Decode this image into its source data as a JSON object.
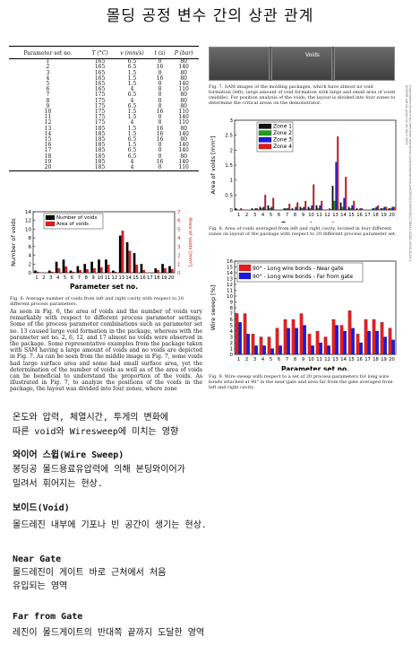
{
  "title": "몰딩 공정 변수 간의 상관 관계",
  "table": {
    "headers": [
      "Parameter set no.",
      "T (°C)",
      "v (mm/s)",
      "t (s)",
      "P (bar)"
    ],
    "rows": [
      [
        "1",
        "165",
        "6.5",
        "0",
        "80"
      ],
      [
        "2",
        "165",
        "6.5",
        "16",
        "140"
      ],
      [
        "3",
        "165",
        "1.5",
        "0",
        "80"
      ],
      [
        "4",
        "165",
        "1.5",
        "16",
        "80"
      ],
      [
        "5",
        "165",
        "1.5",
        "0",
        "140"
      ],
      [
        "6",
        "165",
        "4",
        "8",
        "110"
      ],
      [
        "7",
        "175",
        "6.5",
        "0",
        "80"
      ],
      [
        "8",
        "175",
        "4",
        "0",
        "80"
      ],
      [
        "9",
        "175",
        "6.5",
        "8",
        "80"
      ],
      [
        "10",
        "175",
        "1.5",
        "16",
        "110"
      ],
      [
        "11",
        "175",
        "1.5",
        "0",
        "140"
      ],
      [
        "12",
        "175",
        "4",
        "8",
        "110"
      ],
      [
        "13",
        "185",
        "1.5",
        "16",
        "80"
      ],
      [
        "14",
        "185",
        "1.5",
        "16",
        "140"
      ],
      [
        "15",
        "185",
        "6.5",
        "16",
        "80"
      ],
      [
        "16",
        "185",
        "1.5",
        "0",
        "140"
      ],
      [
        "17",
        "185",
        "6.5",
        "0",
        "140"
      ],
      [
        "18",
        "185",
        "6.5",
        "0",
        "80"
      ],
      [
        "19",
        "185",
        "4",
        "16",
        "140"
      ],
      [
        "20",
        "185",
        "4",
        "0",
        "110"
      ]
    ]
  },
  "fig7": {
    "void_label": "Voids",
    "caption": "Fig. 7.   SAM images of the molding packages, which have almost no void formation (left), large amount of void formation with large and small area of voids (middle). For position analysis of the voids, the layout is divided into four zones to determine the critical areas on the demonstrator."
  },
  "side_text": "Downloaded from http://meridian.allenpress.com/imaps/article-pdf/2020/1/000258/2738451/i2380-4505-2020-1-000258.pdf by guest on 20 April 2025",
  "fig6": {
    "caption": "Fig. 6.   Average number of voids from left and right cavity with respect to 20 different process parameters.",
    "xlabel": "Parameter set no.",
    "ylabel_left": "Number of voids",
    "ylabel_right": "Area of voids [mm²]"
  },
  "fig8": {
    "caption": "Fig. 8.   Area of voids averaged from left and right cavity, located in four different zones on layout of the package with respect to 20 different process parameter set.",
    "xlabel": "Parameter set no.",
    "ylabel": "Area of voids [mm²]"
  },
  "fig9": {
    "caption": "Fig. 9.   Wire sweep with respect to a set of 20 process parameters for long wire bonds attached at 90° in the near-gate and area far from the gate averaged from left and right cavity.",
    "xlabel": "Parameter set no.",
    "ylabel": "Wire sweep [%]"
  },
  "body_text": "As seen in Fig. 6, the area of voids and the number of voids vary remarkably with respect to different process parameter settings. Some of the process parameter combinations such as parameter set no. 13 caused large void formation in the package, whereas with the parameter set no. 2, 6, 12, and 17 almost no voids were observed in the package. Some representative examples from the package taken with SAM having a large amount of voids and no voids are depicted in Fig. 7. As can be seen from the middle image in Fig. 7, some voids had large surface area and some had small surface area, yet the determination of the number of voids as well as of the area of voids can be beneficial to understand the proportion of the voids.",
  "body_text2": "As illustrated in Fig. 7, to analyze the positions of the voids in the package, the layout was divided into four zones, where zone",
  "notes": {
    "line1": "온도와 압력, 체열시간, 투게의 변화에",
    "line2": "따른 void와 Wiresweep에 미치는 영향",
    "ws_title": "와이어 스윕(Wire Sweep)",
    "ws_desc1": "봉딩공 몰드용료유압력에 의해 본딩와이어가",
    "ws_desc2": "밀려서 휘어지는 현상.",
    "void_title": "보이드(Void)",
    "void_desc": "몰드레진 내부에 기포나 빈 공간이 생기는 현상.",
    "near_title": "Near Gate",
    "near_desc1": "몰드레진이 게이트 바로 근처에서 처음",
    "near_desc2": "유입되는 영역",
    "far_title": "Far from Gate",
    "far_desc": "레진이 몰드게이트의 반대쪽 끝까지 도달한 영역"
  },
  "chart_data": [
    {
      "type": "bar",
      "categories": [
        "1",
        "2",
        "3",
        "4",
        "5",
        "6",
        "7",
        "8",
        "9",
        "10",
        "11",
        "12",
        "13",
        "14",
        "15",
        "16",
        "17",
        "18",
        "19",
        "20"
      ],
      "series": [
        {
          "name": "Number of voids",
          "axis": "left",
          "color": "#000000",
          "values": [
            0.5,
            0,
            0.5,
            2.5,
            3,
            0.5,
            1.5,
            2,
            2.5,
            3,
            3,
            0.5,
            8.5,
            7,
            4.5,
            2,
            0,
            1,
            2,
            1.5
          ]
        },
        {
          "name": "Area of voids",
          "axis": "right",
          "color": "#e81d1d",
          "values": [
            0.1,
            0,
            0.1,
            0.5,
            0.7,
            0.1,
            0.3,
            0.4,
            0.5,
            0.6,
            0.9,
            0.1,
            4.8,
            2.5,
            0.9,
            0.3,
            0,
            0.3,
            0.5,
            0.4
          ]
        }
      ],
      "xlabel": "Parameter set no.",
      "ylabel": "Number of voids",
      "ylabel_right": "Area of voids [mm²]",
      "ylim": [
        0,
        14
      ],
      "ylim_right": [
        0,
        7
      ],
      "grid": false,
      "legend": "top-left"
    },
    {
      "type": "bar",
      "categories": [
        "1",
        "2",
        "3",
        "4",
        "5",
        "6",
        "7",
        "8",
        "9",
        "10",
        "11",
        "12",
        "13",
        "14",
        "15",
        "16",
        "17",
        "18",
        "19",
        "20"
      ],
      "series": [
        {
          "name": "Zone 1",
          "color": "#111111",
          "values": [
            0.05,
            0,
            0.05,
            0.1,
            0.15,
            0,
            0.05,
            0.05,
            0.1,
            0.1,
            0.15,
            0,
            0.8,
            0.25,
            0.1,
            0.05,
            0,
            0.05,
            0.05,
            0.05
          ]
        },
        {
          "name": "Zone 2",
          "color": "#1ea01e",
          "values": [
            0,
            0,
            0,
            0.05,
            0.05,
            0,
            0.05,
            0,
            0.05,
            0.05,
            0.05,
            0,
            0.3,
            0.1,
            0.05,
            0,
            0,
            0.05,
            0.05,
            0.05
          ]
        },
        {
          "name": "Zone 3",
          "color": "#1a1ae0",
          "values": [
            0,
            0,
            0.05,
            0.1,
            0.1,
            0,
            0.05,
            0.1,
            0.1,
            0.15,
            0.15,
            0,
            1.6,
            0.4,
            0.15,
            0.05,
            0,
            0.1,
            0.1,
            0.1
          ]
        },
        {
          "name": "Zone 4",
          "color": "#e01818",
          "values": [
            0.05,
            0,
            0.05,
            0.5,
            0.4,
            0,
            0.2,
            0.25,
            0.3,
            0.85,
            0.3,
            0.05,
            2.45,
            1.1,
            0.3,
            0.05,
            0,
            0.15,
            0.1,
            0.1
          ]
        }
      ],
      "xlabel": "Parameter set no.",
      "ylabel": "Area of voids [mm²]",
      "ylim": [
        0,
        3.0
      ],
      "grid": false,
      "legend": "top-left"
    },
    {
      "type": "bar",
      "categories": [
        "1",
        "2",
        "3",
        "4",
        "5",
        "6",
        "7",
        "8",
        "9",
        "10",
        "11",
        "12",
        "13",
        "14",
        "15",
        "16",
        "17",
        "18",
        "19",
        "20"
      ],
      "series": [
        {
          "name": "90° - Long wire bonds - Near gate",
          "color": "#e81d1d",
          "values": [
            7,
            7,
            3.5,
            3,
            3,
            4.5,
            6,
            6,
            7,
            3.5,
            4,
            3,
            6,
            5,
            7.5,
            3.5,
            6,
            6,
            5.5,
            4.5
          ]
        },
        {
          "name": "90° - Long wire bonds - Far from gate",
          "color": "#1a1ae0",
          "values": [
            5.5,
            3.5,
            1.5,
            1.5,
            1,
            1.5,
            4.5,
            4.5,
            5,
            1.5,
            2,
            1.5,
            5,
            4,
            4.5,
            2,
            4,
            4,
            3,
            2.5
          ]
        }
      ],
      "xlabel": "Parameter set no.",
      "ylabel": "Wire sweep [%]",
      "ylim": [
        0,
        16
      ],
      "grid": false,
      "legend": "top-left"
    }
  ]
}
